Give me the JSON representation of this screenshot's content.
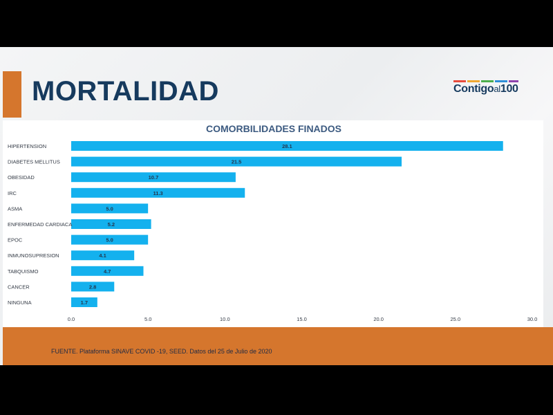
{
  "slide": {
    "title": "MORTALIDAD",
    "logo": {
      "main": "Contigo",
      "mid": "al",
      "num": "100",
      "colors": [
        "#e84b3c",
        "#f0a830",
        "#4cae4c",
        "#2f8fd8",
        "#8e44ad"
      ]
    },
    "source": "FUENTE. Plataforma SINAVE COVID -19, SEED. Datos del 25 de Julio de 2020"
  },
  "colors": {
    "accent": "#d5762d",
    "bar": "#14b1ee",
    "title": "#163a5e"
  },
  "chart_data": {
    "type": "bar",
    "orientation": "horizontal",
    "title": "COMORBILIDADES FINADOS",
    "categories": [
      "HIPERTENSION",
      "DIABETES MELLITUS",
      "OBESIDAD",
      "IRC",
      "ASMA",
      "ENFERMEDAD CARDIACA",
      "EPOC",
      "INMUNOSUPRESION",
      "TABQUISMO",
      "CANCER",
      "NINGUNA"
    ],
    "values": [
      28.1,
      21.5,
      10.7,
      11.3,
      5.0,
      5.2,
      5.0,
      4.1,
      4.7,
      2.8,
      1.7
    ],
    "value_labels": [
      "28.1",
      "21.5",
      "10.7",
      "11.3",
      "5.0",
      "5.2",
      "5.0",
      "4.1",
      "4.7",
      "2.8",
      "1.7"
    ],
    "xlim": [
      0,
      30
    ],
    "xticks": [
      "0.0",
      "5.0",
      "10.0",
      "15.0",
      "20.0",
      "25.0",
      "30.0"
    ],
    "grid": false,
    "legend": "none"
  }
}
